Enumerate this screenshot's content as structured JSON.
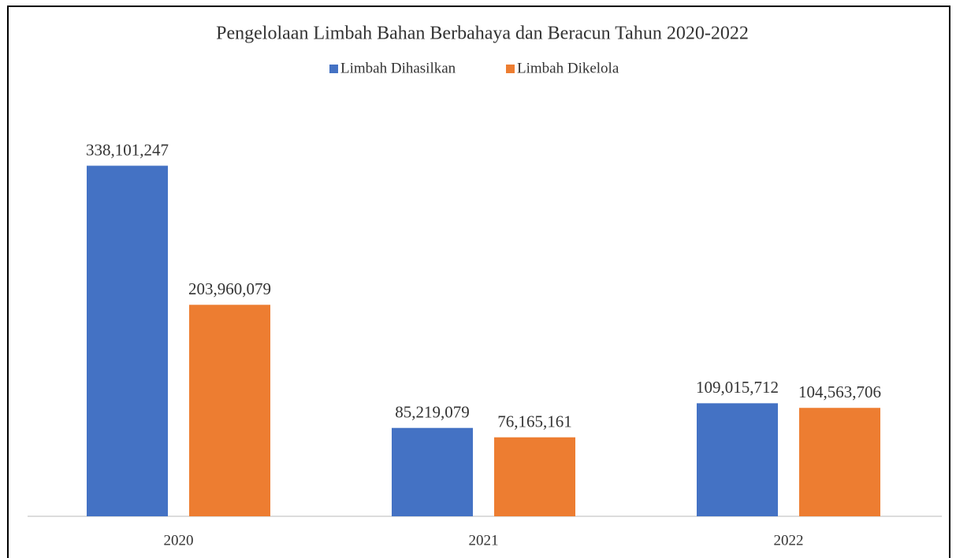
{
  "chart_data": {
    "type": "bar",
    "title": "Pengelolaan Limbah Bahan Berbahaya dan Beracun Tahun 2020-2022",
    "categories": [
      "2020",
      "2021",
      "2022"
    ],
    "series": [
      {
        "name": "Limbah Dihasilkan",
        "color": "#4472c4",
        "values": [
          338101247,
          85219079,
          109015712
        ],
        "value_labels": [
          "338,101,247",
          "85,219,079",
          "109,015,712"
        ]
      },
      {
        "name": "Limbah Dikelola",
        "color": "#ed7d31",
        "values": [
          203960079,
          76165161,
          104563706
        ],
        "value_labels": [
          "203,960,079",
          "76,165,161",
          "104,563,706"
        ]
      }
    ],
    "ylim": [
      0,
      400000000
    ],
    "legend": "top"
  }
}
